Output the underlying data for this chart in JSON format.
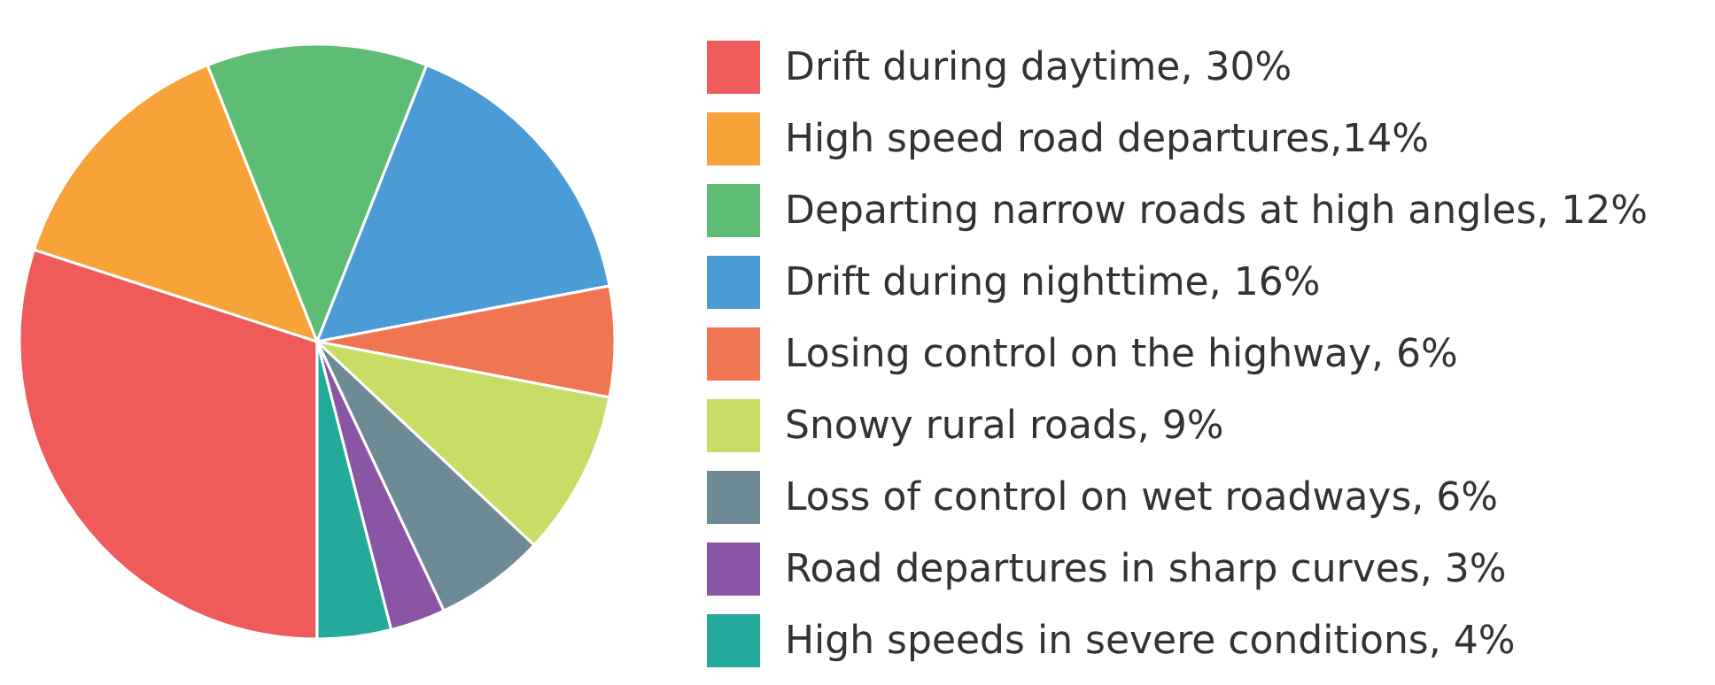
{
  "chart_data": {
    "type": "pie",
    "categories": [
      "Drift during daytime, 30%",
      "High speed road departures,14%",
      "Departing narrow roads at high angles, 12%",
      "Drift during nighttime, 16%",
      "Losing control on the highway, 6%",
      "Snowy rural roads, 9%",
      "Loss of control on wet roadways, 6%",
      "Road departures in sharp curves, 3%",
      "High speeds in severe conditions, 4%"
    ],
    "values": [
      30,
      14,
      12,
      16,
      6,
      9,
      6,
      3,
      4
    ],
    "colors": [
      "#ef5b5b",
      "#f8a23a",
      "#5fbc75",
      "#4a9bd6",
      "#f07552",
      "#c8dc66",
      "#6e8a94",
      "#8b55a6",
      "#24aa9a"
    ],
    "legend": "right"
  }
}
